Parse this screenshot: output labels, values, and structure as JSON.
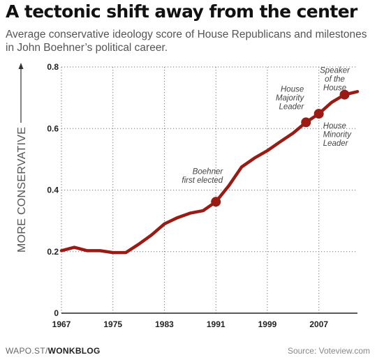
{
  "header": {
    "title": "A tectonic shift away from the center",
    "subtitle": "Average conservative ideology score of House Republicans and milestones in John Boehner’s political career."
  },
  "footer": {
    "source_prefix": "WAPO.ST/",
    "source_brand": "WONKBLOG",
    "source": "Source: Voteview.com"
  },
  "chart_data": {
    "type": "line",
    "ylabel": "MORE CONSERVATIVE",
    "xlim": [
      1967,
      2013
    ],
    "ylim": [
      0,
      0.8
    ],
    "x_ticks": [
      1967,
      1975,
      1983,
      1991,
      1999,
      2007
    ],
    "x_tick_labels": [
      "1967",
      "1975",
      "1983",
      "1991",
      "1999",
      "2007"
    ],
    "y_ticks": [
      0,
      0.2,
      0.4,
      0.6,
      0.8
    ],
    "y_tick_labels": [
      "0",
      "0.2",
      "0.4",
      "0.6",
      "0.8"
    ],
    "grid": true,
    "series": [
      {
        "color": "#9b1b14",
        "x": [
          1967,
          1969,
          1971,
          1973,
          1975,
          1977,
          1979,
          1981,
          1983,
          1985,
          1987,
          1989,
          1991,
          1993,
          1995,
          1997,
          1999,
          2001,
          2003,
          2005,
          2007,
          2009,
          2011,
          2013
        ],
        "y": [
          0.203,
          0.214,
          0.203,
          0.203,
          0.197,
          0.197,
          0.224,
          0.254,
          0.29,
          0.31,
          0.325,
          0.333,
          0.362,
          0.414,
          0.475,
          0.504,
          0.528,
          0.557,
          0.585,
          0.62,
          0.648,
          0.685,
          0.71,
          0.72
        ]
      }
    ],
    "milestones": [
      {
        "x": 1991,
        "y": 0.362,
        "label_lines": [
          "Boehner",
          "first elected"
        ]
      },
      {
        "x": 2005,
        "y": 0.62,
        "label_lines": [
          "House",
          "Majority",
          "Leader"
        ]
      },
      {
        "x": 2007,
        "y": 0.648,
        "label_lines": [
          "House",
          "Minority",
          "Leader"
        ]
      },
      {
        "x": 2011,
        "y": 0.71,
        "label_lines": [
          "Speaker",
          "of the",
          "House"
        ]
      }
    ]
  }
}
